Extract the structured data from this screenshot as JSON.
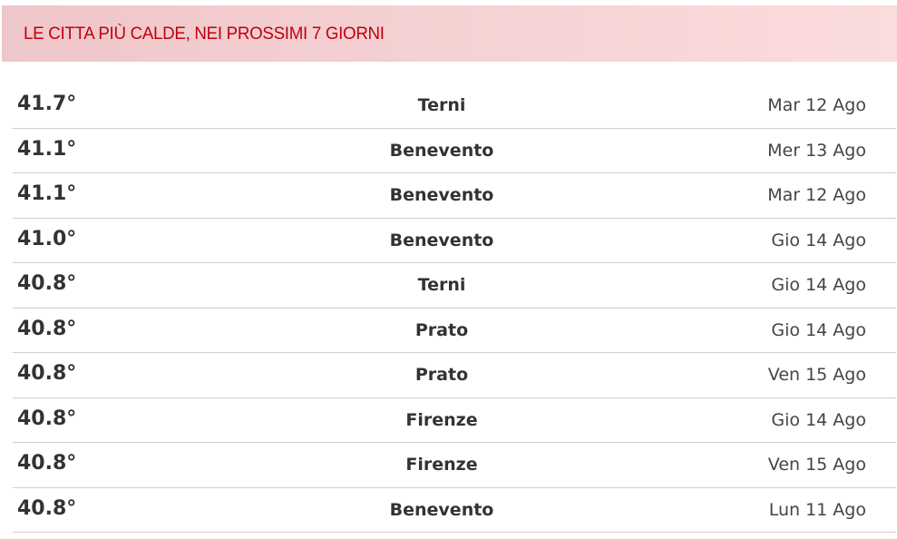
{
  "header": {
    "title": "LE CITTA PIÙ CALDE, NEI PROSSIMI 7 GIORNI"
  },
  "rows": [
    {
      "temp": "41.7°",
      "city": "Terni",
      "date": "Mar 12 Ago"
    },
    {
      "temp": "41.1°",
      "city": "Benevento",
      "date": "Mer 13 Ago"
    },
    {
      "temp": "41.1°",
      "city": "Benevento",
      "date": "Mar 12 Ago"
    },
    {
      "temp": "41.0°",
      "city": "Benevento",
      "date": "Gio 14 Ago"
    },
    {
      "temp": "40.8°",
      "city": "Terni",
      "date": "Gio 14 Ago"
    },
    {
      "temp": "40.8°",
      "city": "Prato",
      "date": "Gio 14 Ago"
    },
    {
      "temp": "40.8°",
      "city": "Prato",
      "date": "Ven 15 Ago"
    },
    {
      "temp": "40.8°",
      "city": "Firenze",
      "date": "Gio 14 Ago"
    },
    {
      "temp": "40.8°",
      "city": "Firenze",
      "date": "Ven 15 Ago"
    },
    {
      "temp": "40.8°",
      "city": "Benevento",
      "date": "Lun 11 Ago"
    }
  ],
  "colors": {
    "title": "#c0000c",
    "header_bg_start": "#efc6c9",
    "header_bg_end": "#fbdcdc"
  }
}
